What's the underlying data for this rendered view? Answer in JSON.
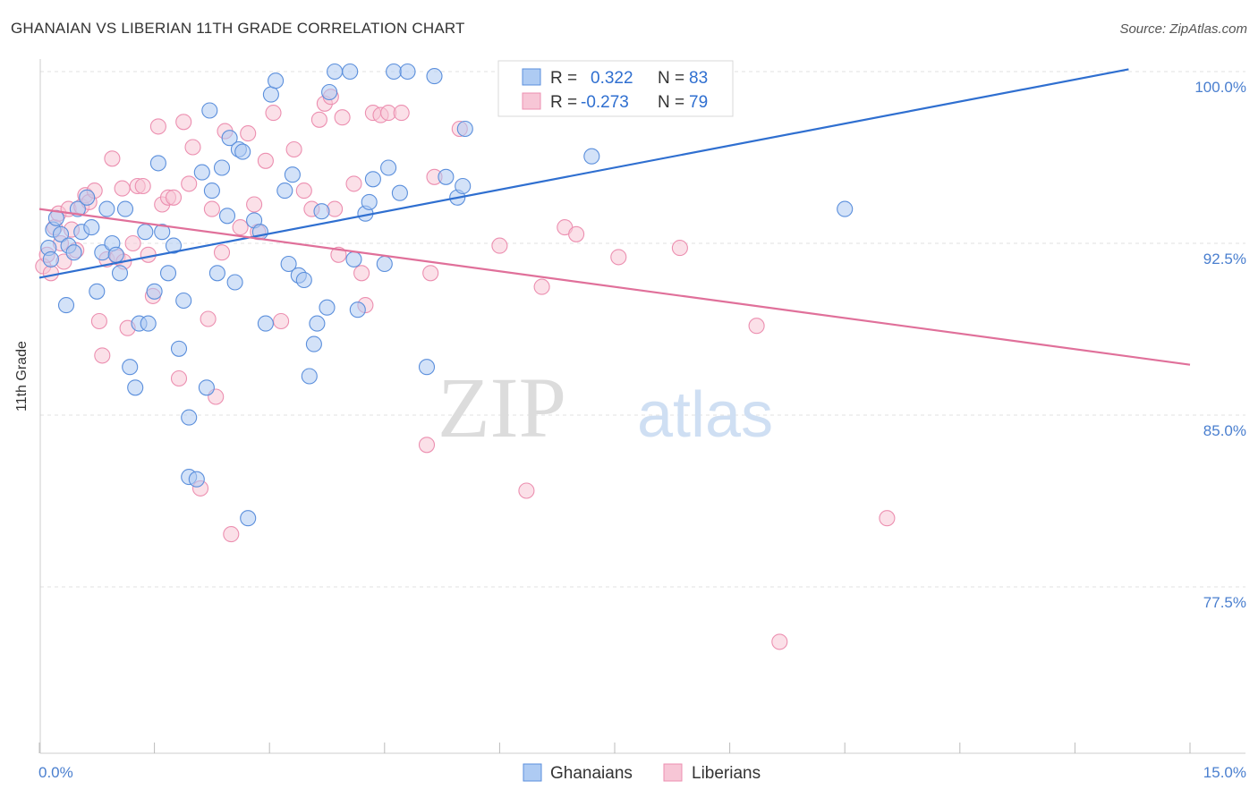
{
  "header": {
    "title": "GHANAIAN VS LIBERIAN 11TH GRADE CORRELATION CHART",
    "source": "Source: ZipAtlas.com"
  },
  "watermark": {
    "zip": "ZIP",
    "atlas": "atlas"
  },
  "colors": {
    "blue": "#5b8fdc",
    "blue_fill": "#aecbf3",
    "pink": "#ec8fb0",
    "pink_fill": "#f7c6d6",
    "blue_line": "#2f6fd0",
    "pink_line": "#e0709a",
    "tick_text": "#4a7fcf"
  },
  "stats_legend": {
    "rows": [
      {
        "r_label": "R =",
        "r_value": "0.322",
        "n_label": "N =",
        "n_value": "83"
      },
      {
        "r_label": "R =",
        "r_value": "-0.273",
        "n_label": "N =",
        "n_value": "79"
      }
    ]
  },
  "chart_data": {
    "type": "scatter",
    "xlabel": "",
    "ylabel": "11th Grade",
    "xlim": [
      0,
      15
    ],
    "ylim": [
      70,
      101.3
    ],
    "x_tick_labels": [
      {
        "value": 0,
        "label": "0.0%"
      },
      {
        "value": 15,
        "label": "15.0%"
      }
    ],
    "y_tick_labels": [
      {
        "value": 100,
        "label": "100.0%"
      },
      {
        "value": 92.5,
        "label": "92.5%"
      },
      {
        "value": 85,
        "label": "85.0%"
      },
      {
        "value": 77.5,
        "label": "77.5%"
      }
    ],
    "grid": true,
    "legend_position": "bottom-center",
    "series": [
      {
        "name": "Ghanaians",
        "color": "#5b8fdc",
        "trend": {
          "x": [
            0,
            14.2
          ],
          "y": [
            91.0,
            100.1
          ]
        },
        "points": [
          [
            0.12,
            92.3
          ],
          [
            0.15,
            91.8
          ],
          [
            0.18,
            93.1
          ],
          [
            0.22,
            93.6
          ],
          [
            0.28,
            92.9
          ],
          [
            0.35,
            89.8
          ],
          [
            0.38,
            92.4
          ],
          [
            0.45,
            92.1
          ],
          [
            0.5,
            94.0
          ],
          [
            0.55,
            93.0
          ],
          [
            0.62,
            94.5
          ],
          [
            0.68,
            93.2
          ],
          [
            0.75,
            90.4
          ],
          [
            0.82,
            92.1
          ],
          [
            0.88,
            94.0
          ],
          [
            0.95,
            92.5
          ],
          [
            1.0,
            92.0
          ],
          [
            1.05,
            91.2
          ],
          [
            1.12,
            94.0
          ],
          [
            1.18,
            87.1
          ],
          [
            1.25,
            86.2
          ],
          [
            1.3,
            89.0
          ],
          [
            1.38,
            93.0
          ],
          [
            1.42,
            89.0
          ],
          [
            1.5,
            90.4
          ],
          [
            1.55,
            96.0
          ],
          [
            1.6,
            93.0
          ],
          [
            1.68,
            91.2
          ],
          [
            1.75,
            92.4
          ],
          [
            1.82,
            87.9
          ],
          [
            1.88,
            90.0
          ],
          [
            1.95,
            82.3
          ],
          [
            1.95,
            84.9
          ],
          [
            2.05,
            82.2
          ],
          [
            2.12,
            95.6
          ],
          [
            2.18,
            86.2
          ],
          [
            2.22,
            98.3
          ],
          [
            2.25,
            94.8
          ],
          [
            2.32,
            91.2
          ],
          [
            2.38,
            95.8
          ],
          [
            2.45,
            93.7
          ],
          [
            2.48,
            97.1
          ],
          [
            2.55,
            90.8
          ],
          [
            2.6,
            96.6
          ],
          [
            2.65,
            96.5
          ],
          [
            2.72,
            80.5
          ],
          [
            2.8,
            93.5
          ],
          [
            2.88,
            93.0
          ],
          [
            2.95,
            89.0
          ],
          [
            3.02,
            99.0
          ],
          [
            3.08,
            99.6
          ],
          [
            3.2,
            94.8
          ],
          [
            3.25,
            91.6
          ],
          [
            3.3,
            95.5
          ],
          [
            3.38,
            91.1
          ],
          [
            3.45,
            90.9
          ],
          [
            3.52,
            86.7
          ],
          [
            3.58,
            88.1
          ],
          [
            3.62,
            89.0
          ],
          [
            3.68,
            93.9
          ],
          [
            3.75,
            89.7
          ],
          [
            3.78,
            99.1
          ],
          [
            3.85,
            100.0
          ],
          [
            4.05,
            100.0
          ],
          [
            4.1,
            91.8
          ],
          [
            4.15,
            89.6
          ],
          [
            4.25,
            93.8
          ],
          [
            4.3,
            94.3
          ],
          [
            4.35,
            95.3
          ],
          [
            4.5,
            91.6
          ],
          [
            4.55,
            95.8
          ],
          [
            4.62,
            100.0
          ],
          [
            4.7,
            94.7
          ],
          [
            4.8,
            100.0
          ],
          [
            5.05,
            87.1
          ],
          [
            5.15,
            99.8
          ],
          [
            5.3,
            95.4
          ],
          [
            5.45,
            94.5
          ],
          [
            5.52,
            95.0
          ],
          [
            5.55,
            97.5
          ],
          [
            6.45,
            100.0
          ],
          [
            7.2,
            96.3
          ],
          [
            10.5,
            94.0
          ]
        ]
      },
      {
        "name": "Liberians",
        "color": "#ec8fb0",
        "trend": {
          "x": [
            0,
            15
          ],
          "y": [
            94.0,
            87.2
          ]
        },
        "points": [
          [
            0.05,
            91.5
          ],
          [
            0.1,
            92.0
          ],
          [
            0.15,
            91.2
          ],
          [
            0.2,
            93.2
          ],
          [
            0.25,
            93.8
          ],
          [
            0.28,
            92.5
          ],
          [
            0.32,
            91.7
          ],
          [
            0.38,
            94.0
          ],
          [
            0.42,
            93.1
          ],
          [
            0.48,
            92.2
          ],
          [
            0.55,
            94.1
          ],
          [
            0.6,
            94.6
          ],
          [
            0.65,
            94.3
          ],
          [
            0.72,
            94.8
          ],
          [
            0.78,
            89.1
          ],
          [
            0.82,
            87.6
          ],
          [
            0.88,
            91.8
          ],
          [
            0.95,
            96.2
          ],
          [
            1.02,
            91.9
          ],
          [
            1.08,
            94.9
          ],
          [
            1.1,
            91.7
          ],
          [
            1.15,
            88.8
          ],
          [
            1.22,
            92.5
          ],
          [
            1.28,
            95.0
          ],
          [
            1.35,
            95.0
          ],
          [
            1.42,
            92.0
          ],
          [
            1.48,
            90.2
          ],
          [
            1.55,
            97.6
          ],
          [
            1.6,
            94.2
          ],
          [
            1.68,
            94.5
          ],
          [
            1.75,
            94.5
          ],
          [
            1.82,
            86.6
          ],
          [
            1.88,
            97.8
          ],
          [
            1.95,
            95.1
          ],
          [
            2.0,
            96.7
          ],
          [
            2.1,
            81.8
          ],
          [
            2.2,
            89.2
          ],
          [
            2.25,
            94.0
          ],
          [
            2.3,
            85.8
          ],
          [
            2.38,
            92.1
          ],
          [
            2.42,
            97.4
          ],
          [
            2.5,
            79.8
          ],
          [
            2.62,
            93.2
          ],
          [
            2.72,
            97.3
          ],
          [
            2.8,
            94.2
          ],
          [
            2.85,
            93.0
          ],
          [
            2.95,
            96.1
          ],
          [
            3.05,
            98.2
          ],
          [
            3.15,
            89.1
          ],
          [
            3.32,
            96.6
          ],
          [
            3.45,
            94.8
          ],
          [
            3.55,
            94.0
          ],
          [
            3.65,
            97.9
          ],
          [
            3.72,
            98.6
          ],
          [
            3.8,
            98.9
          ],
          [
            3.85,
            94.0
          ],
          [
            3.9,
            92.0
          ],
          [
            3.95,
            98.0
          ],
          [
            4.1,
            95.1
          ],
          [
            4.2,
            91.2
          ],
          [
            4.25,
            89.8
          ],
          [
            4.35,
            98.2
          ],
          [
            4.45,
            98.1
          ],
          [
            4.55,
            98.2
          ],
          [
            4.72,
            98.2
          ],
          [
            5.05,
            83.7
          ],
          [
            5.1,
            91.2
          ],
          [
            5.15,
            95.4
          ],
          [
            5.48,
            97.5
          ],
          [
            6.0,
            92.4
          ],
          [
            6.35,
            81.7
          ],
          [
            6.55,
            90.6
          ],
          [
            6.85,
            93.2
          ],
          [
            7.0,
            92.9
          ],
          [
            7.55,
            91.9
          ],
          [
            8.35,
            92.3
          ],
          [
            9.35,
            88.9
          ],
          [
            11.05,
            80.5
          ],
          [
            9.65,
            75.1
          ]
        ]
      }
    ]
  }
}
